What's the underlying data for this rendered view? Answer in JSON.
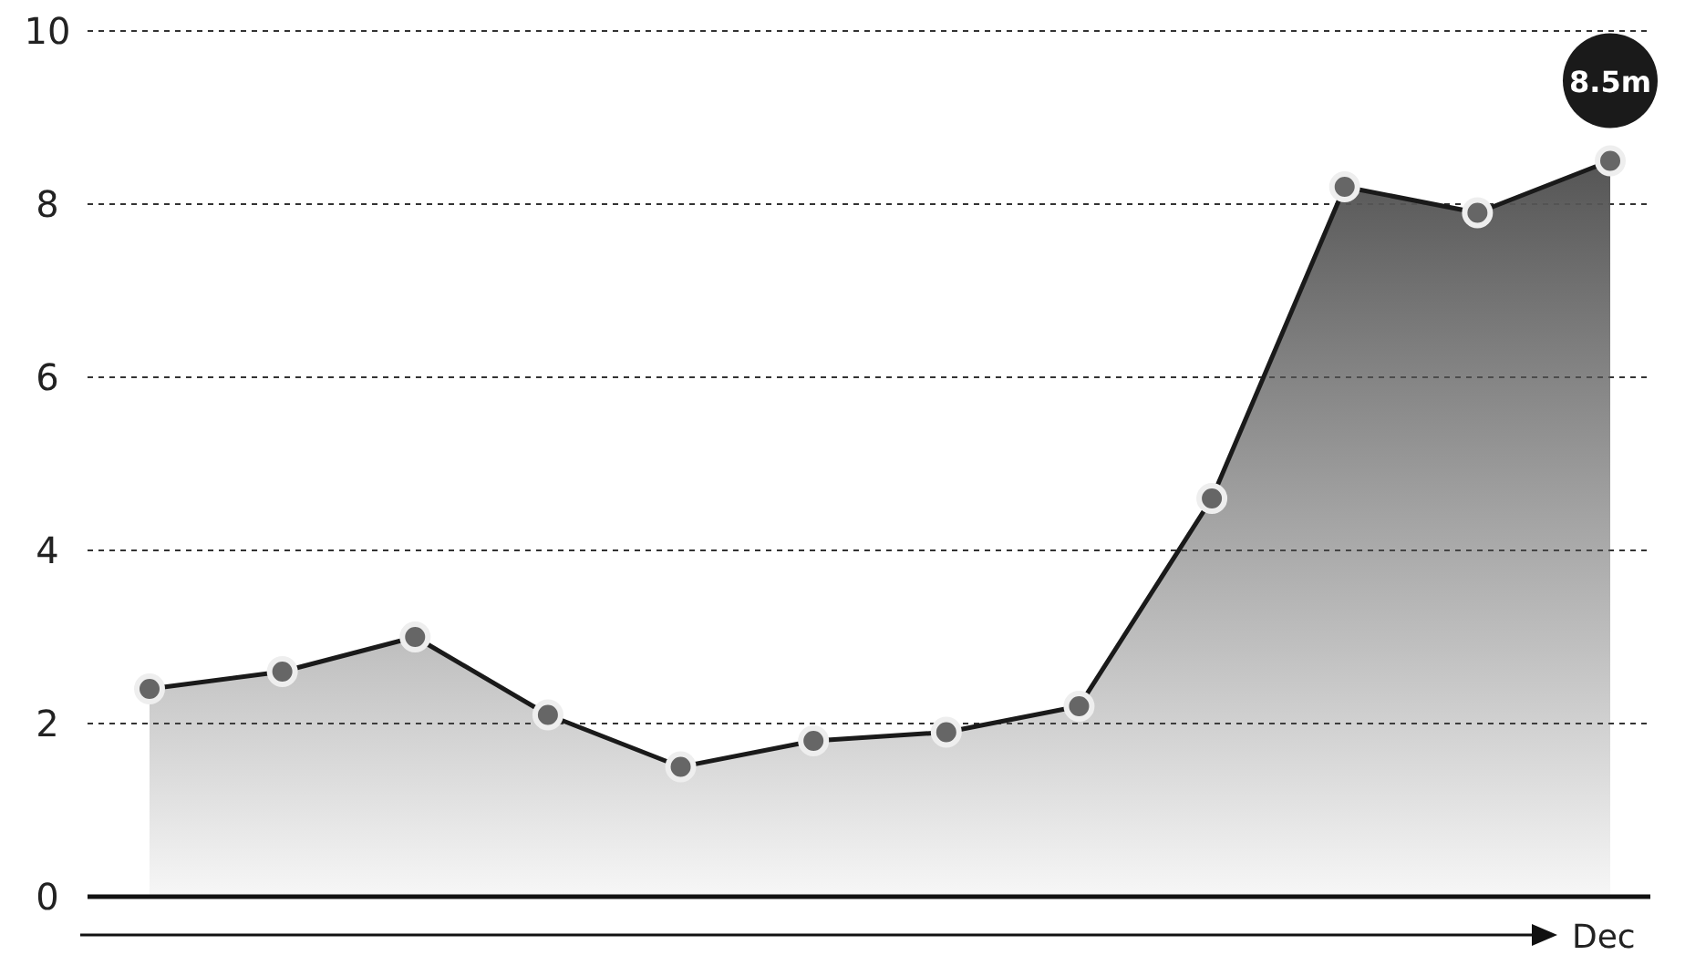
{
  "chart_data": {
    "type": "area",
    "xlabel": "Dec",
    "categories": [
      null,
      null,
      null,
      null,
      null,
      null,
      null,
      null,
      null,
      null,
      null,
      null
    ],
    "series": [
      {
        "color": "#1a1a1a",
        "values": [
          2.4,
          2.6,
          3.0,
          2.1,
          1.5,
          1.8,
          1.9,
          2.2,
          4.6,
          8.2,
          7.9,
          8.5
        ]
      }
    ],
    "ylim": [
      0,
      10
    ],
    "yticks": [
      0,
      2,
      4,
      6,
      8,
      10
    ],
    "grid": "y",
    "marker": "circle",
    "annotations": [
      {
        "text": "8.5m",
        "y": 8.5
      }
    ]
  }
}
